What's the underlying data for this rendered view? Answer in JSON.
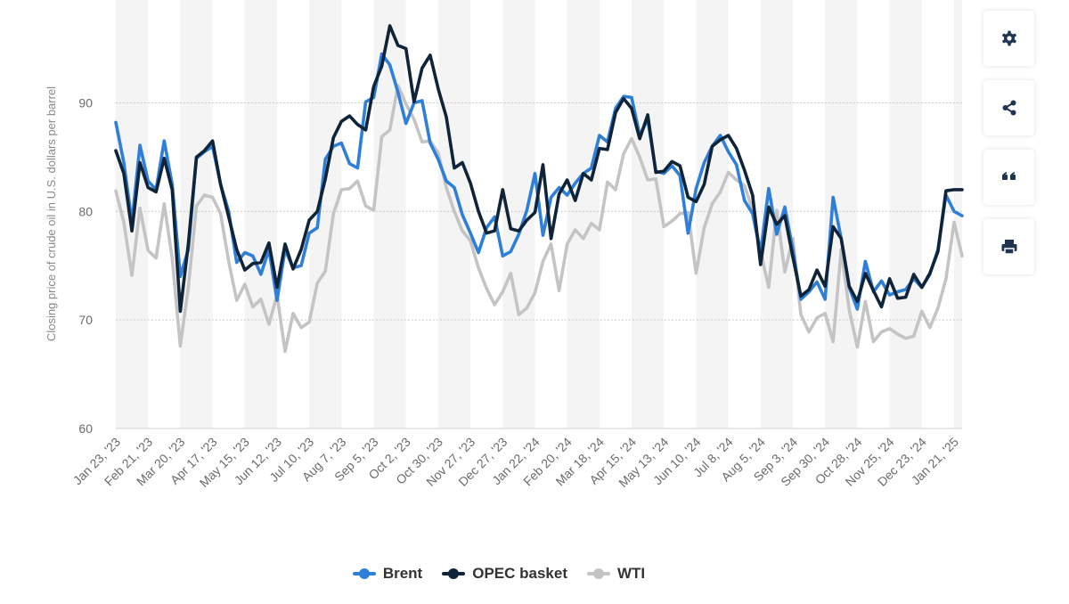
{
  "toolbar": [
    {
      "name": "settings-button",
      "icon": "gear-icon"
    },
    {
      "name": "share-button",
      "icon": "share-icon"
    },
    {
      "name": "cite-button",
      "icon": "quote-icon"
    },
    {
      "name": "print-button",
      "icon": "print-icon"
    }
  ],
  "colors": {
    "Brent": "#2f7fd8",
    "OPEC basket": "#0f2438",
    "WTI": "#c4c4c4"
  },
  "chart_data": {
    "type": "line",
    "ylabel": "Closing price of crude oil in U.S. dollars per barrel",
    "xlabel": "",
    "ylim": [
      60,
      98
    ],
    "yticks": [
      60,
      70,
      80,
      90
    ],
    "grid": true,
    "legend": "bottom-center",
    "x_tick_labels": [
      "Jan 23, '23",
      "Feb 21, '23",
      "Mar 20, '23",
      "Apr 17, '23",
      "May 15, '23",
      "Jun 12, '23",
      "Jul 10, '23",
      "Aug 7, '23",
      "Sep 5, '23",
      "Oct 2, '23",
      "Oct 30, '23",
      "Nov 27, '23",
      "Dec 27, '23",
      "Jan 22, '24",
      "Feb 20, '24",
      "Mar 18, '24",
      "Apr 15, '24",
      "May 13, '24",
      "Jun 10, '24",
      "Jul 8, '24",
      "Aug 5, '24",
      "Sep 3, '24",
      "Sep 30, '24",
      "Oct 28, '24",
      "Nov 25, '24",
      "Dec 23, '24",
      "Jan 21, '25"
    ],
    "x_tick_every": 4,
    "series": [
      {
        "name": "Brent",
        "values": [
          88.2,
          84.5,
          79.0,
          86.1,
          82.8,
          82.0,
          86.5,
          82.5,
          74.0,
          76.5,
          84.9,
          85.5,
          86.0,
          82.5,
          80.0,
          75.3,
          76.2,
          75.9,
          74.2,
          76.5,
          71.8,
          76.5,
          74.8,
          75.0,
          78.0,
          78.5,
          84.8,
          86.0,
          86.3,
          84.4,
          84.0,
          90.1,
          90.5,
          94.5,
          93.5,
          91.0,
          88.1,
          90.0,
          90.2,
          86.3,
          84.8,
          82.8,
          82.2,
          79.7,
          78.0,
          76.2,
          78.5,
          79.5,
          75.9,
          76.3,
          77.9,
          80.1,
          83.5,
          77.8,
          81.3,
          82.2,
          81.5,
          82.6,
          83.5,
          84.0,
          87.0,
          86.4,
          89.5,
          90.6,
          90.5,
          87.0,
          88.5,
          83.7,
          83.5,
          84.2,
          83.3,
          78.0,
          82.1,
          84.5,
          86.0,
          87.0,
          85.5,
          84.3,
          81.0,
          79.8,
          76.2,
          82.1,
          77.9,
          80.4,
          76.5,
          71.9,
          72.6,
          73.5,
          71.9,
          81.3,
          77.5,
          73.0,
          71.0,
          75.4,
          72.6,
          73.6,
          72.3,
          72.6,
          72.8,
          73.8,
          73.0,
          74.2,
          76.5,
          81.5,
          80.0,
          79.6
        ]
      },
      {
        "name": "OPEC basket",
        "values": [
          85.6,
          83.5,
          78.2,
          84.5,
          82.2,
          81.8,
          84.9,
          82.0,
          70.8,
          77.0,
          85.0,
          85.6,
          86.5,
          82.5,
          79.5,
          76.5,
          74.6,
          75.2,
          75.3,
          77.1,
          73.0,
          77.0,
          74.7,
          76.5,
          79.2,
          80.0,
          83.0,
          86.8,
          88.3,
          88.8,
          88.0,
          87.5,
          91.5,
          93.4,
          97.1,
          95.3,
          95.0,
          90.1,
          93.2,
          94.4,
          91.3,
          88.7,
          84.0,
          84.5,
          82.6,
          80.0,
          78.0,
          78.2,
          82.0,
          78.4,
          78.2,
          79.2,
          79.9,
          84.3,
          77.5,
          81.6,
          82.9,
          81.0,
          83.5,
          82.9,
          85.8,
          85.7,
          89.1,
          90.4,
          89.5,
          86.7,
          88.9,
          83.6,
          83.7,
          84.6,
          84.2,
          81.3,
          80.9,
          82.5,
          86.0,
          86.6,
          87.0,
          85.8,
          83.8,
          81.5,
          75.1,
          80.4,
          78.8,
          79.6,
          75.8,
          72.2,
          72.8,
          74.6,
          73.1,
          78.6,
          77.5,
          73.1,
          71.7,
          74.3,
          72.7,
          71.2,
          73.8,
          72.0,
          72.1,
          74.2,
          73.0,
          74.3,
          76.3,
          81.9,
          82.0,
          82.0
        ]
      },
      {
        "name": "WTI",
        "values": [
          81.9,
          79.0,
          74.1,
          80.3,
          76.4,
          75.7,
          80.7,
          75.7,
          67.6,
          73.0,
          80.5,
          81.5,
          81.3,
          79.8,
          75.4,
          71.8,
          73.3,
          71.2,
          71.9,
          69.6,
          72.3,
          67.1,
          70.6,
          69.3,
          69.8,
          73.4,
          74.5,
          79.8,
          82.0,
          82.1,
          82.8,
          80.5,
          80.1,
          86.9,
          87.5,
          91.6,
          89.9,
          88.5,
          86.4,
          86.5,
          85.4,
          82.2,
          80.0,
          78.2,
          77.3,
          74.8,
          72.9,
          71.4,
          72.6,
          74.3,
          70.5,
          71.1,
          72.5,
          75.4,
          77.0,
          72.7,
          77.0,
          78.3,
          77.5,
          78.9,
          78.3,
          82.7,
          82.0,
          85.3,
          86.7,
          85.0,
          82.9,
          83.0,
          78.6,
          79.1,
          79.8,
          79.9,
          74.3,
          78.5,
          80.7,
          81.8,
          83.6,
          82.9,
          82.4,
          80.1,
          76.3,
          73.0,
          80.1,
          74.4,
          77.5,
          70.5,
          68.9,
          70.2,
          70.6,
          68.0,
          76.5,
          70.9,
          67.5,
          71.7,
          68.0,
          68.9,
          69.2,
          68.7,
          68.3,
          68.5,
          70.8,
          69.3,
          71.1,
          73.8,
          79.0,
          75.9
        ]
      }
    ]
  }
}
